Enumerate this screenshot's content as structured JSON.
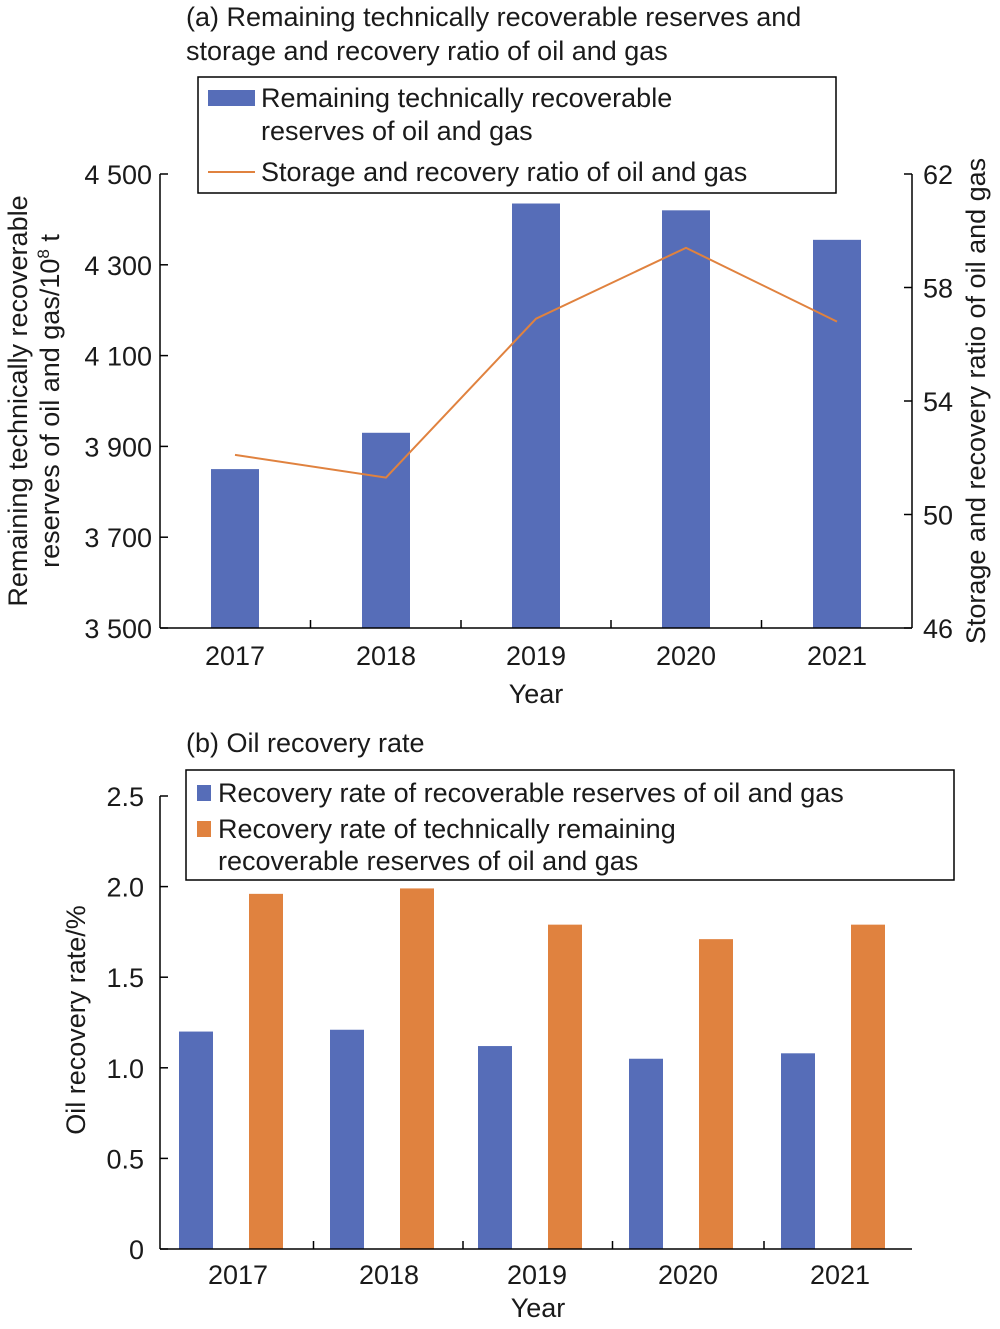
{
  "colors": {
    "blue": "#566db8",
    "orange": "#e0823f"
  },
  "chart_data": [
    {
      "type": "bar",
      "title_line1": "(a) Remaining technically recoverable reserves and",
      "title_line2": "storage and recovery ratio of oil and gas",
      "categories": [
        "2017",
        "2018",
        "2019",
        "2020",
        "2021"
      ],
      "xlabel": "Year",
      "ylabel_line1": "Remaining technically recoverable",
      "ylabel_line2_prefix": "reserves of oil and gas/10",
      "ylabel_line2_sup": "8",
      "ylabel_line2_suffix": " t",
      "ylim": [
        3500,
        4500
      ],
      "yticks": [
        3500,
        3700,
        3900,
        4100,
        4300,
        4500
      ],
      "ytick_labels": [
        "3 500",
        "3 700",
        "3 900",
        "4 100",
        "4 300",
        "4 500"
      ],
      "y2label": "Storage and recovery ratio of oil and gas",
      "y2lim": [
        46,
        62
      ],
      "y2ticks": [
        46,
        50,
        54,
        58,
        62
      ],
      "y2tick_labels": [
        "46",
        "50",
        "54",
        "58",
        "62"
      ],
      "series": [
        {
          "name": "Remaining technically recoverable reserves of oil and gas",
          "legend_line1": "Remaining technically recoverable",
          "legend_line2": "reserves of oil and gas",
          "kind": "bar",
          "axis": "left",
          "color": "#566db8",
          "values": [
            3850,
            3930,
            4435,
            4420,
            4355
          ]
        },
        {
          "name": "Storage and recovery ratio of oil and gas",
          "kind": "line",
          "axis": "right",
          "color": "#e0823f",
          "values": [
            52.1,
            51.3,
            56.9,
            59.4,
            56.8
          ]
        }
      ],
      "legend_position": "top"
    },
    {
      "type": "bar",
      "title": "(b) Oil recovery rate",
      "categories": [
        "2017",
        "2018",
        "2019",
        "2020",
        "2021"
      ],
      "xlabel": "Year",
      "ylabel": "Oil recovery rate/%",
      "ylim": [
        0,
        2.5
      ],
      "yticks": [
        0,
        0.5,
        1.0,
        1.5,
        2.0,
        2.5
      ],
      "ytick_labels": [
        "0",
        "0.5",
        "1.0",
        "1.5",
        "2.0",
        "2.5"
      ],
      "series": [
        {
          "name": "Recovery rate of recoverable reserves of oil and gas",
          "color": "#566db8",
          "values": [
            1.2,
            1.21,
            1.12,
            1.05,
            1.08
          ]
        },
        {
          "name": "Recovery rate of technically remaining recoverable reserves of oil and gas",
          "legend_line1": "Recovery rate of technically remaining",
          "legend_line2": "recoverable reserves of oil and gas",
          "color": "#e0823f",
          "values": [
            1.96,
            1.99,
            1.79,
            1.71,
            1.79
          ]
        }
      ],
      "legend_position": "top"
    }
  ]
}
